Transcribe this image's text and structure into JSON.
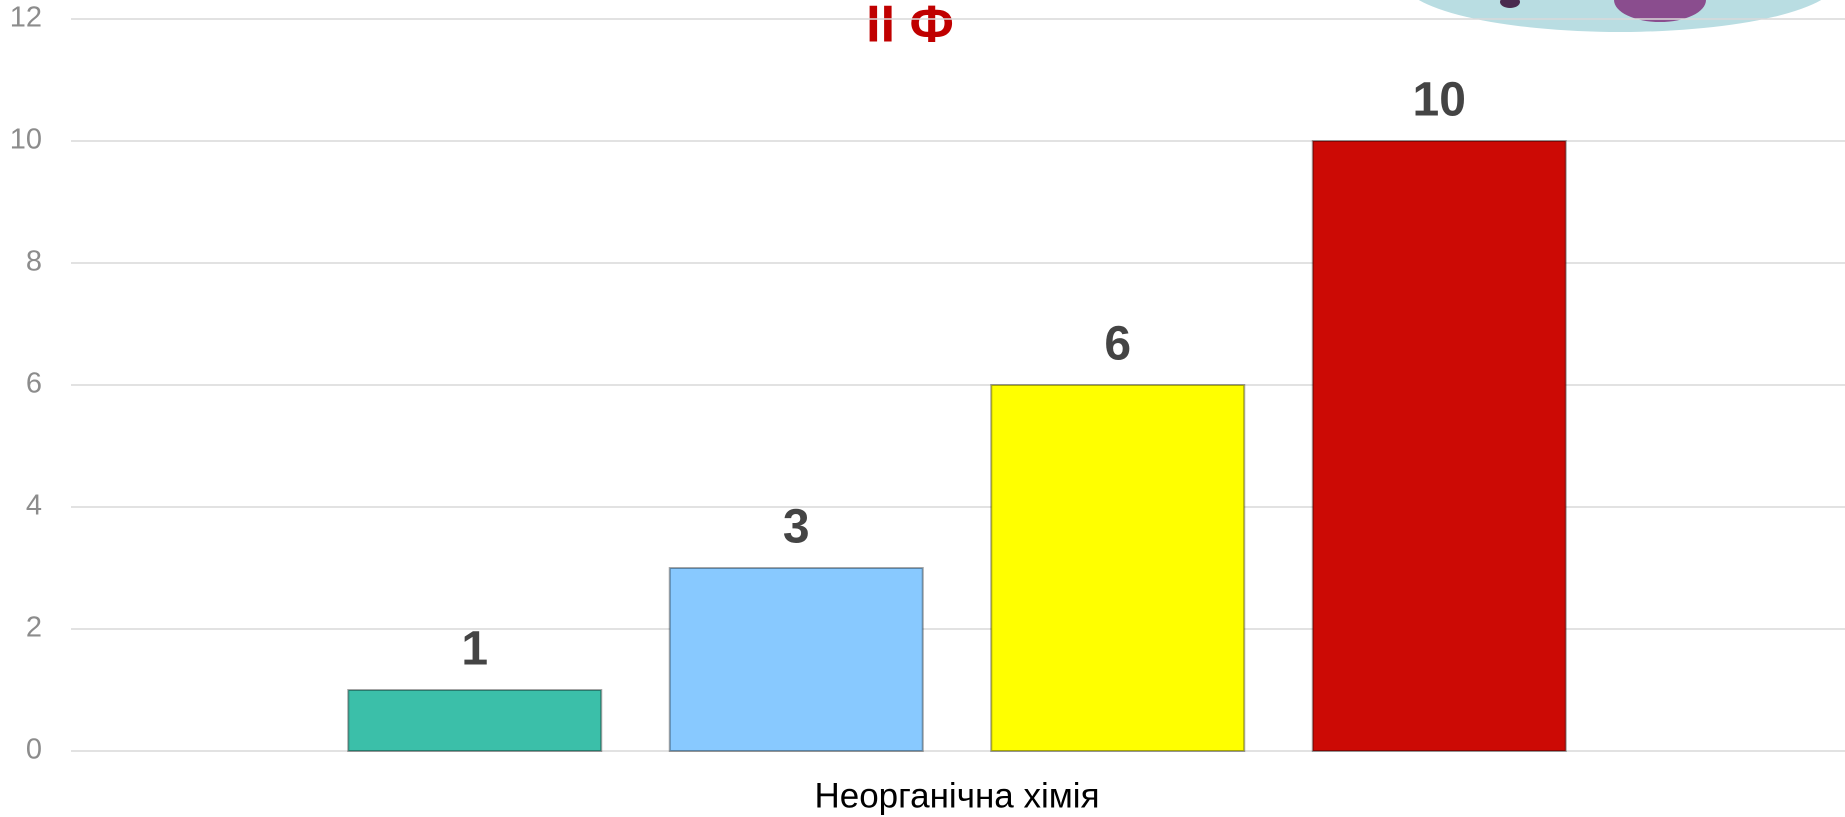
{
  "chart_data": {
    "type": "bar",
    "title": "II Ф",
    "categories": [
      "Неорганічна хімія"
    ],
    "series": [
      {
        "color": "#3bbfa9",
        "values": [
          1
        ]
      },
      {
        "color": "#88c9ff",
        "values": [
          3
        ]
      },
      {
        "color": "#ffff00",
        "values": [
          6
        ]
      },
      {
        "color": "#cc0a05",
        "values": [
          10
        ]
      }
    ],
    "ylim": [
      0,
      12
    ],
    "yticks": [
      0,
      2,
      4,
      6,
      8,
      10,
      12
    ],
    "grid": true
  }
}
